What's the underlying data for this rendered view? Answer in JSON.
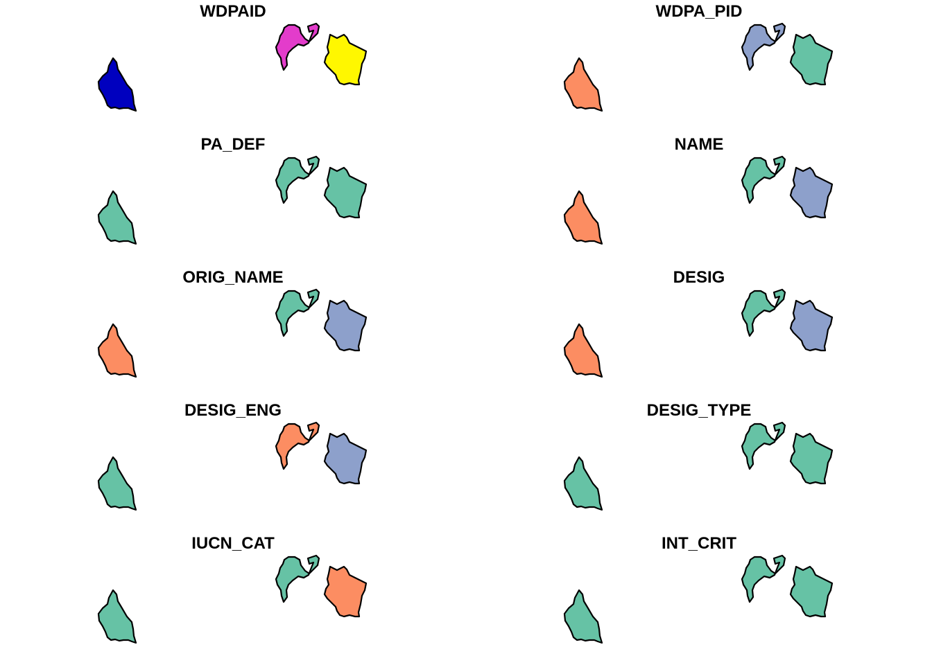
{
  "figure": {
    "panels": [
      {
        "title": "WDPAID",
        "fills": {
          "left": "#0000BF",
          "mid": "#E33CCB",
          "right": "#FFF700"
        }
      },
      {
        "title": "WDPA_PID",
        "fills": {
          "left": "#FC8D62",
          "mid": "#8DA0CB",
          "right": "#66C2A5"
        }
      },
      {
        "title": "PA_DEF",
        "fills": {
          "left": "#66C2A5",
          "mid": "#66C2A5",
          "right": "#66C2A5"
        }
      },
      {
        "title": "NAME",
        "fills": {
          "left": "#FC8D62",
          "mid": "#66C2A5",
          "right": "#8DA0CB"
        }
      },
      {
        "title": "ORIG_NAME",
        "fills": {
          "left": "#FC8D62",
          "mid": "#66C2A5",
          "right": "#8DA0CB"
        }
      },
      {
        "title": "DESIG",
        "fills": {
          "left": "#FC8D62",
          "mid": "#66C2A5",
          "right": "#8DA0CB"
        }
      },
      {
        "title": "DESIG_ENG",
        "fills": {
          "left": "#66C2A5",
          "mid": "#FC8D62",
          "right": "#8DA0CB"
        }
      },
      {
        "title": "DESIG_TYPE",
        "fills": {
          "left": "#66C2A5",
          "mid": "#66C2A5",
          "right": "#66C2A5"
        }
      },
      {
        "title": "IUCN_CAT",
        "fills": {
          "left": "#66C2A5",
          "mid": "#66C2A5",
          "right": "#FC8D62"
        }
      },
      {
        "title": "INT_CRIT",
        "fills": {
          "left": "#66C2A5",
          "mid": "#66C2A5",
          "right": "#66C2A5"
        }
      }
    ]
  }
}
